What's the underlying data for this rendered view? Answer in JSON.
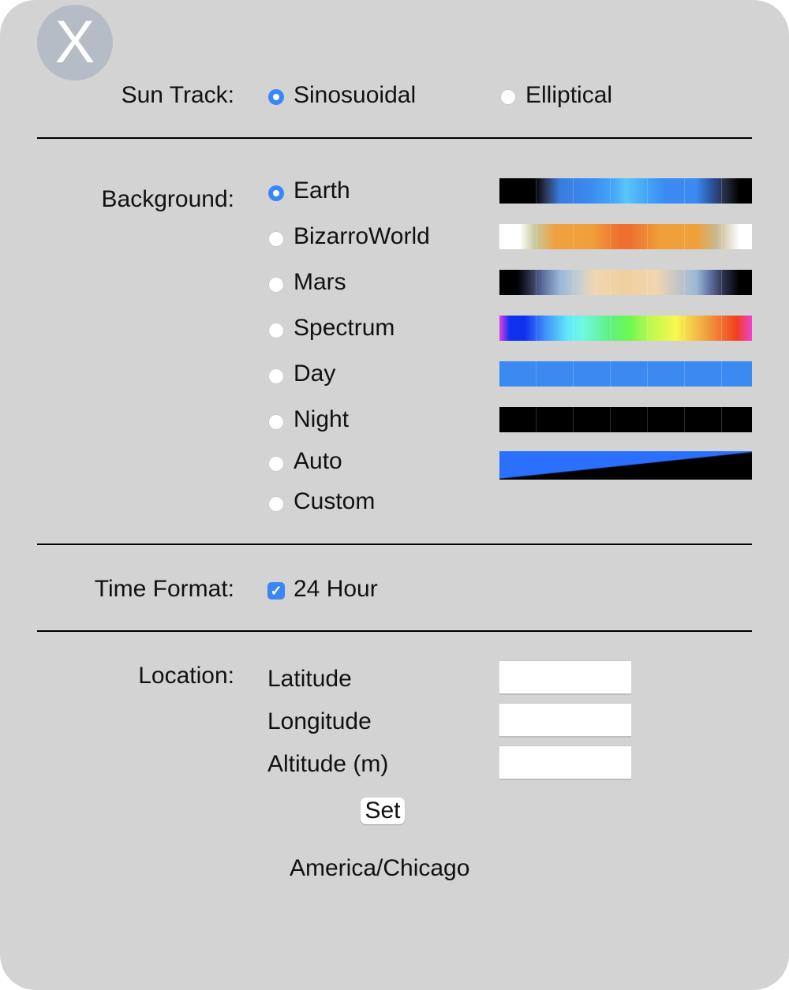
{
  "close_button": {
    "label": "X"
  },
  "sun_track": {
    "label": "Sun Track:",
    "options": [
      {
        "label": "Sinosuoidal",
        "selected": true
      },
      {
        "label": "Elliptical",
        "selected": false
      }
    ]
  },
  "background": {
    "label": "Background:",
    "options": [
      {
        "label": "Earth",
        "selected": true
      },
      {
        "label": "BizarroWorld",
        "selected": false
      },
      {
        "label": "Mars",
        "selected": false
      },
      {
        "label": "Spectrum",
        "selected": false
      },
      {
        "label": "Day",
        "selected": false
      },
      {
        "label": "Night",
        "selected": false
      },
      {
        "label": "Auto",
        "selected": false
      },
      {
        "label": "Custom",
        "selected": false
      }
    ]
  },
  "time_format": {
    "label": "Time Format:",
    "option": "24 Hour",
    "checked": true
  },
  "location": {
    "label": "Location:",
    "fields": [
      {
        "label": "Latitude",
        "value": ""
      },
      {
        "label": "Longitude",
        "value": ""
      },
      {
        "label": "Altitude (m)",
        "value": ""
      }
    ],
    "set_label": "Set",
    "timezone": "America/Chicago"
  },
  "colors": {
    "accent": "#3a86f5",
    "panel": "#d3d3d3",
    "close_bg": "#b6bcc6"
  }
}
